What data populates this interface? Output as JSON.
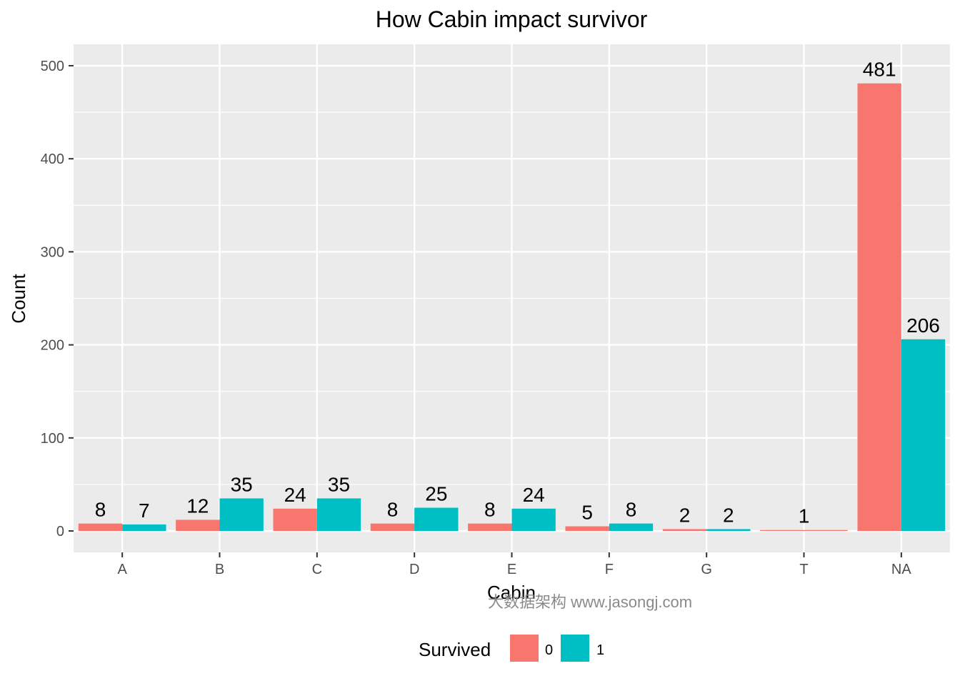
{
  "chart_data": {
    "type": "bar",
    "title": "How Cabin impact survivor",
    "xlabel": "Cabin",
    "ylabel": "Count",
    "categories": [
      "A",
      "B",
      "C",
      "D",
      "E",
      "F",
      "G",
      "T",
      "NA"
    ],
    "series": [
      {
        "name": "0",
        "color": "#F8766D",
        "values": [
          8,
          12,
          24,
          8,
          8,
          5,
          2,
          1,
          481
        ]
      },
      {
        "name": "1",
        "color": "#00BFC4",
        "values": [
          7,
          35,
          35,
          25,
          24,
          8,
          2,
          null,
          206
        ]
      }
    ],
    "ylim": [
      -23,
      523
    ],
    "yticks": [
      0,
      100,
      200,
      300,
      400,
      500
    ],
    "grid": true,
    "legend": {
      "title": "Survived",
      "position": "bottom"
    }
  },
  "watermark": "大数据架构  www.jasongj.com"
}
